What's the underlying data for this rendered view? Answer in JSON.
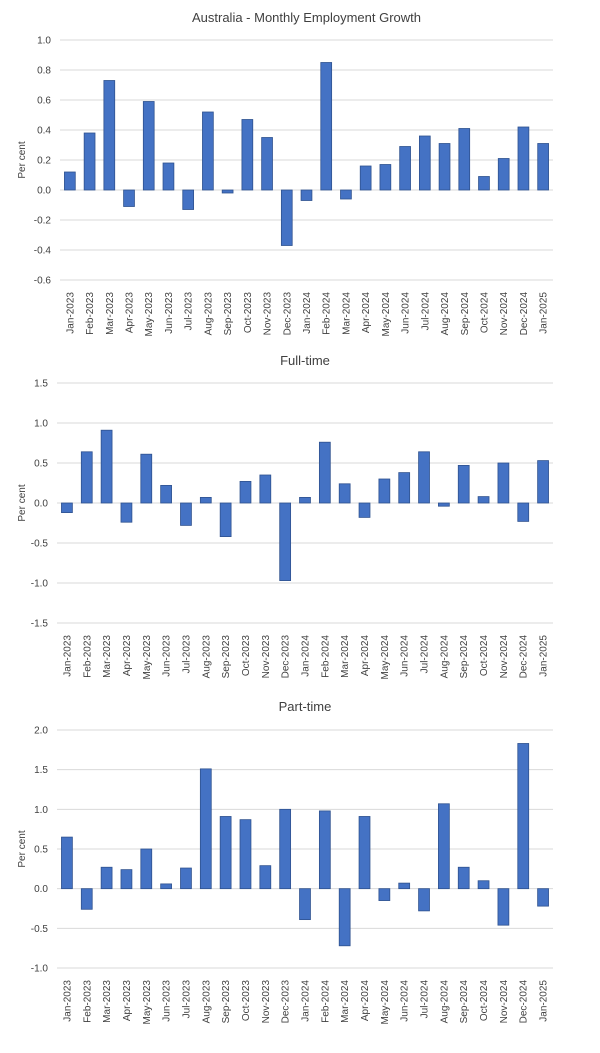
{
  "colors": {
    "bar": "#4472c4",
    "bar_edge": "#2f528f",
    "grid": "#d9d9d9",
    "text": "#404040"
  },
  "chart_data": [
    {
      "type": "bar",
      "title": "Australia - Monthly Employment Growth",
      "ylabel": "Per cent",
      "xlabel": "",
      "ylim": [
        -0.6,
        1.0
      ],
      "yticks": [
        1.0,
        0.8,
        0.6,
        0.4,
        0.2,
        0.0,
        -0.2,
        -0.4,
        -0.6
      ],
      "ytick_labels": [
        "1.0",
        "0.8",
        "0.6",
        "0.4",
        "0.2",
        "0.0",
        "-0.2",
        "-0.4",
        "-0.6"
      ],
      "grid": true,
      "categories": [
        "Jan-2023",
        "Feb-2023",
        "Mar-2023",
        "Apr-2023",
        "May-2023",
        "Jun-2023",
        "Jul-2023",
        "Aug-2023",
        "Sep-2023",
        "Oct-2023",
        "Nov-2023",
        "Dec-2023",
        "Jan-2024",
        "Feb-2024",
        "Mar-2024",
        "Apr-2024",
        "May-2024",
        "Jun-2024",
        "Jul-2024",
        "Aug-2024",
        "Sep-2024",
        "Oct-2024",
        "Nov-2024",
        "Dec-2024",
        "Jan-2025"
      ],
      "values": [
        0.12,
        0.38,
        0.73,
        -0.11,
        0.59,
        0.18,
        -0.13,
        0.52,
        -0.02,
        0.47,
        0.35,
        -0.37,
        -0.07,
        0.85,
        -0.06,
        0.16,
        0.17,
        0.29,
        0.36,
        0.31,
        0.41,
        0.09,
        0.21,
        0.42,
        0.31
      ]
    },
    {
      "type": "bar",
      "title": "Full-time",
      "ylabel": "Per cent",
      "xlabel": "",
      "ylim": [
        -1.5,
        1.5
      ],
      "yticks": [
        1.5,
        1.0,
        0.5,
        0.0,
        -0.5,
        -1.0,
        -1.5
      ],
      "ytick_labels": [
        "1.5",
        "1.0",
        "0.5",
        "0.0",
        "-0.5",
        "-1.0",
        "-1.5"
      ],
      "grid": true,
      "categories": [
        "Jan-2023",
        "Feb-2023",
        "Mar-2023",
        "Apr-2023",
        "May-2023",
        "Jun-2023",
        "Jul-2023",
        "Aug-2023",
        "Sep-2023",
        "Oct-2023",
        "Nov-2023",
        "Dec-2023",
        "Jan-2024",
        "Feb-2024",
        "Mar-2024",
        "Apr-2024",
        "May-2024",
        "Jun-2024",
        "Jul-2024",
        "Aug-2024",
        "Sep-2024",
        "Oct-2024",
        "Nov-2024",
        "Dec-2024",
        "Jan-2025"
      ],
      "values": [
        -0.12,
        0.64,
        0.91,
        -0.24,
        0.61,
        0.22,
        -0.28,
        0.07,
        -0.42,
        0.27,
        0.35,
        -0.97,
        0.07,
        0.76,
        0.24,
        -0.18,
        0.3,
        0.38,
        0.64,
        -0.04,
        0.47,
        0.08,
        0.5,
        -0.23,
        0.53
      ]
    },
    {
      "type": "bar",
      "title": "Part-time",
      "ylabel": "Per cent",
      "xlabel": "",
      "ylim": [
        -1.0,
        2.0
      ],
      "yticks": [
        2.0,
        1.5,
        1.0,
        0.5,
        0.0,
        -0.5,
        -1.0
      ],
      "ytick_labels": [
        "2.0",
        "1.5",
        "1.0",
        "0.5",
        "0.0",
        "-0.5",
        "-1.0"
      ],
      "grid": true,
      "categories": [
        "Jan-2023",
        "Feb-2023",
        "Mar-2023",
        "Apr-2023",
        "May-2023",
        "Jun-2023",
        "Jul-2023",
        "Aug-2023",
        "Sep-2023",
        "Oct-2023",
        "Nov-2023",
        "Dec-2023",
        "Jan-2024",
        "Feb-2024",
        "Mar-2024",
        "Apr-2024",
        "May-2024",
        "Jun-2024",
        "Jul-2024",
        "Aug-2024",
        "Sep-2024",
        "Oct-2024",
        "Nov-2024",
        "Dec-2024",
        "Jan-2025"
      ],
      "values": [
        0.65,
        -0.26,
        0.27,
        0.24,
        0.5,
        0.06,
        0.26,
        1.51,
        0.91,
        0.87,
        0.29,
        1.0,
        -0.39,
        0.98,
        -0.72,
        0.91,
        -0.15,
        0.07,
        -0.28,
        1.07,
        0.27,
        0.1,
        -0.46,
        1.83,
        -0.22
      ]
    }
  ]
}
